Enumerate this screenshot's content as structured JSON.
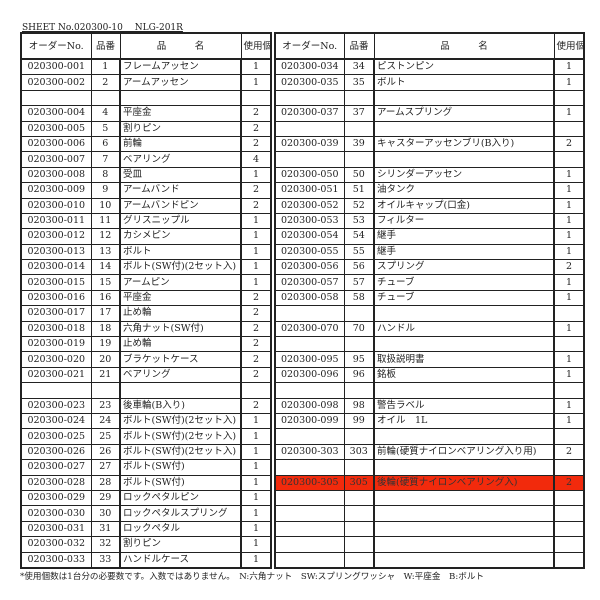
{
  "sheet_title": "SHEET No.020300-10　 NLG-201R",
  "headers": {
    "order_no": "オーダーNo.",
    "part_no": "品番",
    "name": "品　　　名",
    "qty": "使用個数"
  },
  "highlight_color": "#f22a0c",
  "left_rows": [
    [
      "020300-001",
      "1",
      "フレームアッセン",
      "1"
    ],
    [
      "020300-002",
      "2",
      "アームアッセン",
      "1"
    ],
    [
      "",
      "",
      "",
      ""
    ],
    [
      "020300-004",
      "4",
      "平座金",
      "2"
    ],
    [
      "020300-005",
      "5",
      "割りピン",
      "2"
    ],
    [
      "020300-006",
      "6",
      "前輪",
      "2"
    ],
    [
      "020300-007",
      "7",
      "ベアリング",
      "4"
    ],
    [
      "020300-008",
      "8",
      "受皿",
      "1"
    ],
    [
      "020300-009",
      "9",
      "アームバンド",
      "2"
    ],
    [
      "020300-010",
      "10",
      "アームバンドピン",
      "2"
    ],
    [
      "020300-011",
      "11",
      "グリスニップル",
      "1"
    ],
    [
      "020300-012",
      "12",
      "カシメピン",
      "1"
    ],
    [
      "020300-013",
      "13",
      "ボルト",
      "1"
    ],
    [
      "020300-014",
      "14",
      "ボルト(SW付)(2セット入)",
      "1"
    ],
    [
      "020300-015",
      "15",
      "アームピン",
      "1"
    ],
    [
      "020300-016",
      "16",
      "平座金",
      "2"
    ],
    [
      "020300-017",
      "17",
      "止め輪",
      "2"
    ],
    [
      "020300-018",
      "18",
      "六角ナット(SW付)",
      "2"
    ],
    [
      "020300-019",
      "19",
      "止め輪",
      "2"
    ],
    [
      "020300-020",
      "20",
      "ブラケットケース",
      "2"
    ],
    [
      "020300-021",
      "21",
      "ベアリング",
      "2"
    ],
    [
      "",
      "",
      "",
      ""
    ],
    [
      "020300-023",
      "23",
      "後車輪(B入り)",
      "2"
    ],
    [
      "020300-024",
      "24",
      "ボルト(SW付)(2セット入)",
      "1"
    ],
    [
      "020300-025",
      "25",
      "ボルト(SW付)(2セット入)",
      "1"
    ],
    [
      "020300-026",
      "26",
      "ボルト(SW付)(2セット入)",
      "1"
    ],
    [
      "020300-027",
      "27",
      "ボルト(SW付)",
      "1"
    ],
    [
      "020300-028",
      "28",
      "ボルト(SW付)",
      "1"
    ],
    [
      "020300-029",
      "29",
      "ロックペタルピン",
      "1"
    ],
    [
      "020300-030",
      "30",
      "ロックペタルスプリング",
      "1"
    ],
    [
      "020300-031",
      "31",
      "ロックペタル",
      "1"
    ],
    [
      "020300-032",
      "32",
      "割りピン",
      "1"
    ],
    [
      "020300-033",
      "33",
      "ハンドルケース",
      "1"
    ]
  ],
  "right_rows": [
    [
      "020300-034",
      "34",
      "ピストンピン",
      "1"
    ],
    [
      "020300-035",
      "35",
      "ボルト",
      "1"
    ],
    [
      "",
      "",
      "",
      ""
    ],
    [
      "020300-037",
      "37",
      "アームスプリング",
      "1"
    ],
    [
      "",
      "",
      "",
      ""
    ],
    [
      "020300-039",
      "39",
      "キャスターアッセンブリ(B入り)",
      "2"
    ],
    [
      "",
      "",
      "",
      ""
    ],
    [
      "020300-050",
      "50",
      "シリンダーアッセン",
      "1"
    ],
    [
      "020300-051",
      "51",
      "油タンク",
      "1"
    ],
    [
      "020300-052",
      "52",
      "オイルキャップ(口金)",
      "1"
    ],
    [
      "020300-053",
      "53",
      "フィルター",
      "1"
    ],
    [
      "020300-054",
      "54",
      "継手",
      "1"
    ],
    [
      "020300-055",
      "55",
      "継手",
      "1"
    ],
    [
      "020300-056",
      "56",
      "スプリング",
      "2"
    ],
    [
      "020300-057",
      "57",
      "チューブ",
      "1"
    ],
    [
      "020300-058",
      "58",
      "チューブ",
      "1"
    ],
    [
      "",
      "",
      "",
      ""
    ],
    [
      "020300-070",
      "70",
      "ハンドル",
      "1"
    ],
    [
      "",
      "",
      "",
      ""
    ],
    [
      "020300-095",
      "95",
      "取扱説明書",
      "1"
    ],
    [
      "020300-096",
      "96",
      "銘板",
      "1"
    ],
    [
      "",
      "",
      "",
      ""
    ],
    [
      "020300-098",
      "98",
      "警告ラベル",
      "1"
    ],
    [
      "020300-099",
      "99",
      "オイル　1L",
      "1"
    ],
    [
      "",
      "",
      "",
      ""
    ],
    [
      "020300-303",
      "303",
      "前輪(硬質ナイロンベアリング入り用)",
      "2"
    ],
    [
      "",
      "",
      "",
      ""
    ],
    [
      "020300-305",
      "305",
      "後輪(硬質ナイロンベアリング入)",
      "2"
    ],
    [
      "",
      "",
      "",
      ""
    ],
    [
      "",
      "",
      "",
      ""
    ],
    [
      "",
      "",
      "",
      ""
    ],
    [
      "",
      "",
      "",
      ""
    ],
    [
      "",
      "",
      "",
      ""
    ]
  ],
  "highlighted_part_no": "305",
  "footer_note": "*使用個数は1台分の必要数です。入数ではありません。　N:六角ナット　SW:スプリングワッシャ　W:平座金　B:ボルト"
}
